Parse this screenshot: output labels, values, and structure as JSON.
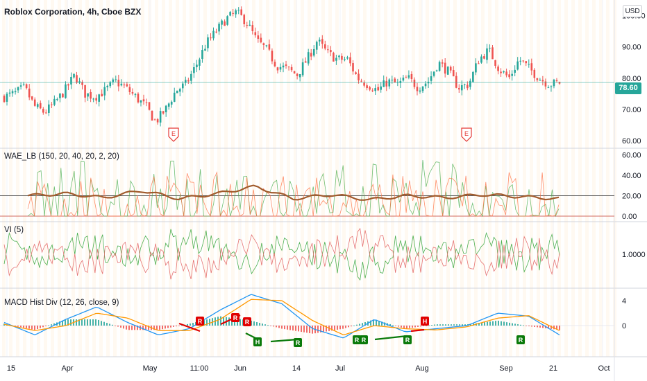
{
  "header": {
    "title": "Roblox Corporation, 4h, Cboe BZX",
    "currency": "USD"
  },
  "price_axis": {
    "ticks": [
      "100.00",
      "90.00",
      "80.00",
      "70.00",
      "60.00"
    ],
    "last_price": "78.60",
    "events": [
      "E",
      "E"
    ]
  },
  "panes": {
    "wae": {
      "label": "WAE_LB (150, 20, 40, 20, 2, 20)",
      "ticks": [
        "60.00",
        "40.00",
        "20.00",
        "0.00"
      ]
    },
    "vi": {
      "label": "VI (5)",
      "ticks": [
        "1.0000"
      ]
    },
    "macd": {
      "label": "MACD Hist Div (12, 26, close, 9)",
      "ticks": [
        "4",
        "0"
      ],
      "div_labels": [
        "R",
        "R",
        "R",
        "H",
        "R",
        "R",
        "R",
        "R",
        "H",
        "R"
      ]
    }
  },
  "time_axis": {
    "labels": [
      "15",
      "Apr",
      "May",
      "11:00",
      "Jun",
      "14",
      "Jul",
      "Aug",
      "Sep",
      "21",
      "Oct"
    ]
  },
  "colors": {
    "up": "#26a69a",
    "down": "#ef5350",
    "grid": "#f0f3fa",
    "macd_line": "#2196f3",
    "signal_line": "#ff9800",
    "wae_trend": "#a05a2c",
    "last_price": "#26a69a",
    "div_bear": "#e00000",
    "div_bull": "#0a7a0a"
  },
  "chart_data": [
    {
      "type": "candlestick",
      "title": "Roblox Corporation, 4h, Cboe BZX",
      "x": [
        "Mar 12",
        "Mar 15",
        "Mar 18",
        "Mar 22",
        "Mar 26",
        "Mar 30",
        "Apr 2",
        "Apr 6",
        "Apr 9",
        "Apr 13",
        "Apr 16",
        "Apr 20",
        "Apr 23",
        "Apr 27",
        "Apr 30",
        "May 4",
        "May 7",
        "May 10",
        "May 13",
        "May 17",
        "May 20",
        "May 24",
        "May 27",
        "May 31",
        "Jun 3",
        "Jun 7",
        "Jun 10",
        "Jun 14",
        "Jun 17",
        "Jun 21",
        "Jun 24",
        "Jun 28",
        "Jul 1",
        "Jul 6",
        "Jul 9",
        "Jul 13",
        "Jul 16",
        "Jul 20",
        "Jul 23",
        "Jul 27",
        "Jul 30",
        "Aug 3",
        "Aug 6",
        "Aug 10",
        "Aug 13",
        "Aug 17",
        "Aug 20",
        "Aug 24",
        "Aug 27",
        "Aug 31",
        "Sep 3",
        "Sep 8",
        "Sep 11",
        "Sep 15",
        "Sep 18",
        "Sep 21"
      ],
      "close": [
        74,
        75,
        77,
        71,
        69,
        72,
        76,
        81,
        75,
        74,
        76,
        79,
        77,
        74,
        71,
        66,
        70,
        76,
        78,
        84,
        91,
        95,
        99,
        101,
        98,
        92,
        89,
        84,
        83,
        81,
        86,
        92,
        88,
        86,
        86,
        80,
        78,
        76,
        79,
        78,
        80,
        77,
        79,
        85,
        82,
        77,
        78,
        86,
        89,
        83,
        80,
        86,
        83,
        80,
        78,
        78.6
      ],
      "ylim": [
        58,
        105
      ],
      "last_price": 78.6,
      "events": [
        {
          "x": "May 4",
          "label": "E"
        },
        {
          "x": "Aug 13",
          "label": "E"
        }
      ]
    },
    {
      "type": "line",
      "title": "WAE_LB (150, 20, 40, 20, 2, 20)",
      "ylim": [
        0,
        65
      ],
      "x": [
        "Mar 12",
        "Mar 26",
        "Apr 9",
        "Apr 23",
        "May 7",
        "May 20",
        "Jun 3",
        "Jun 17",
        "Jul 1",
        "Jul 16",
        "Jul 30",
        "Aug 13",
        "Aug 27",
        "Sep 11",
        "Sep 21"
      ],
      "series": [
        {
          "values": [
            20,
            22,
            18,
            25,
            17,
            22,
            29,
            17,
            21,
            16,
            20,
            18,
            21,
            19,
            17
          ]
        }
      ]
    },
    {
      "type": "line",
      "title": "VI (5)",
      "ylim": [
        0.6,
        1.4
      ],
      "x": [
        "Mar 12",
        "Mar 26",
        "Apr 9",
        "Apr 23",
        "May 7",
        "May 20",
        "Jun 3",
        "Jun 17",
        "Jul 1",
        "Jul 16",
        "Jul 30",
        "Aug 13",
        "Aug 27",
        "Sep 11",
        "Sep 21"
      ],
      "series": [
        {
          "values": [
            1.05,
            0.95,
            1.15,
            0.9,
            1.1,
            1.2,
            0.9,
            1.1,
            1.0,
            0.85,
            1.1,
            0.95,
            1.15,
            0.95,
            1.05
          ]
        },
        {
          "values": [
            0.95,
            1.05,
            0.85,
            1.1,
            0.9,
            0.8,
            1.1,
            0.9,
            1.0,
            1.15,
            0.9,
            1.05,
            0.85,
            1.05,
            0.95
          ]
        }
      ]
    },
    {
      "type": "line",
      "title": "MACD Hist Div (12, 26, close, 9)",
      "ylim": [
        -5,
        6
      ],
      "x": [
        "Mar 12",
        "Mar 22",
        "Apr 2",
        "Apr 13",
        "Apr 23",
        "May 4",
        "May 13",
        "May 24",
        "Jun 3",
        "Jun 14",
        "Jun 24",
        "Jul 6",
        "Jul 16",
        "Jul 27",
        "Aug 6",
        "Aug 17",
        "Aug 27",
        "Sep 8",
        "Sep 21"
      ],
      "series": [
        {
          "values": [
            0.5,
            -1.5,
            1.0,
            3.0,
            0.5,
            -1.5,
            -0.5,
            2.5,
            5.0,
            3.5,
            -0.5,
            -2.0,
            1.0,
            -1.0,
            -0.5,
            0.0,
            2.0,
            1.5,
            -1.5
          ]
        },
        {
          "values": [
            0.2,
            -0.8,
            0.0,
            2.0,
            1.2,
            -0.8,
            -0.8,
            1.0,
            4.2,
            4.0,
            0.8,
            -1.5,
            0.0,
            -0.5,
            -0.7,
            -0.2,
            1.2,
            1.6,
            -0.8
          ]
        }
      ]
    }
  ]
}
